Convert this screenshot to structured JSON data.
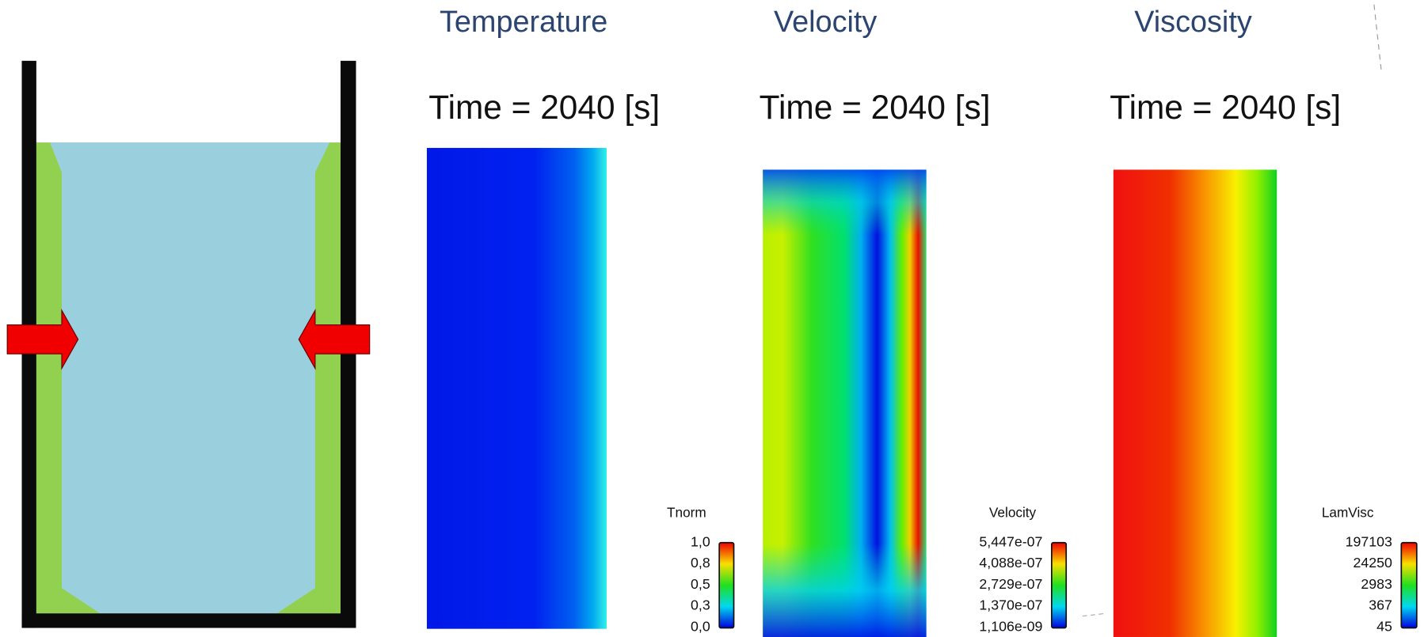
{
  "panels": [
    {
      "heading": "Temperature",
      "time_label": "Time = 2040 [s]",
      "legend": {
        "title": "Tnorm",
        "labels": [
          "1,0",
          "0,8",
          "0,5",
          "0,3",
          "0,0"
        ]
      }
    },
    {
      "heading": "Velocity",
      "time_label": "Time = 2040 [s]",
      "legend": {
        "title": "Velocity",
        "labels": [
          "5,447e-07",
          "4,088e-07",
          "2,729e-07",
          "1,370e-07",
          "1,106e-09"
        ]
      }
    },
    {
      "heading": "Viscosity",
      "time_label": "Time = 2040 [s]",
      "legend": {
        "title": "LamVisc",
        "labels": [
          "197103",
          "24250",
          "2983",
          "367",
          "45"
        ]
      }
    }
  ]
}
